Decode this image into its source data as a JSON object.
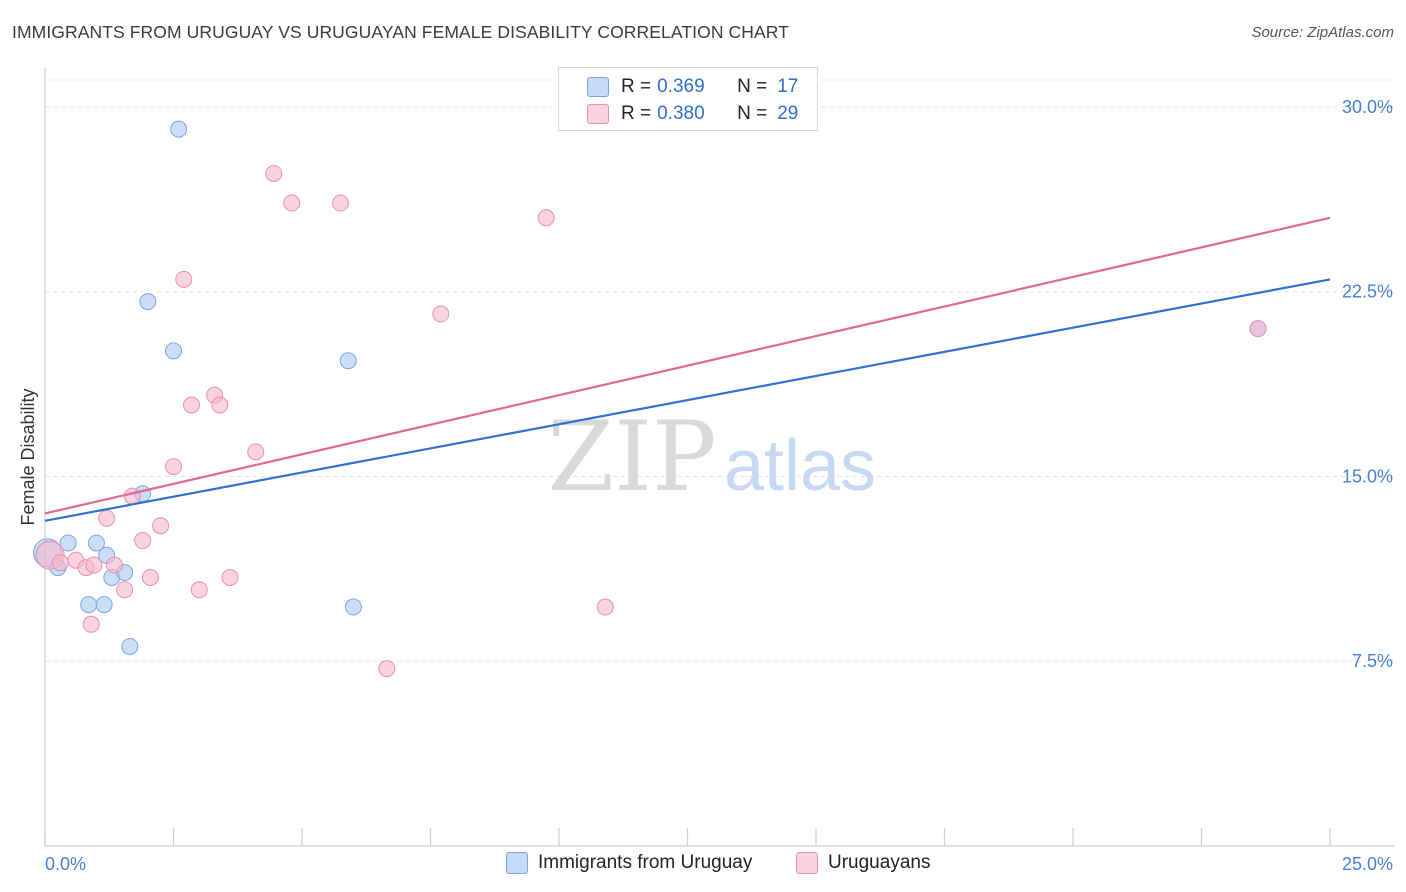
{
  "header": {
    "title": "IMMIGRANTS FROM URUGUAY VS URUGUAYAN FEMALE DISABILITY CORRELATION CHART",
    "source": "Source: ZipAtlas.com"
  },
  "watermark": {
    "zip": "ZIP",
    "atlas": "atlas"
  },
  "legend": {
    "rows": [
      {
        "r_label": "R =",
        "r_value": "0.369",
        "n_label": "N =",
        "n_value": "17",
        "color": "#a9c8f0"
      },
      {
        "r_label": "R =",
        "r_value": "0.380",
        "n_label": "N =",
        "n_value": "29",
        "color": "#f6b6cb"
      }
    ]
  },
  "bottom_legend": {
    "series1": "Immigrants from Uruguay",
    "series2": "Uruguayans"
  },
  "colors": {
    "blue_fill": "#a9c8f0",
    "blue_stroke": "#7aa6e0",
    "blue_line": "#2f72d2",
    "pink_fill": "#f6b6cb",
    "pink_stroke": "#e98fae",
    "pink_line": "#e06892",
    "tick_text": "#4a7fd0",
    "grid": "#e3e3e3"
  },
  "chart_data": {
    "type": "scatter",
    "ylabel": "Female Disability",
    "xlim": [
      0,
      25
    ],
    "ylim": [
      0,
      31.5
    ],
    "x_tick_labels": [
      {
        "value": 0,
        "label": "0.0%"
      },
      {
        "value": 25,
        "label": "25.0%"
      }
    ],
    "y_tick_labels": [
      {
        "value": 7.5,
        "label": "7.5%"
      },
      {
        "value": 15,
        "label": "15.0%"
      },
      {
        "value": 22.5,
        "label": "22.5%"
      },
      {
        "value": 30,
        "label": "30.0%"
      }
    ],
    "grid": true,
    "legend_position": "top-center",
    "series": [
      {
        "name": "Immigrants from Uruguay",
        "color": "#a9c8f0",
        "points": [
          [
            0.05,
            11.9
          ],
          [
            0.25,
            11.3
          ],
          [
            0.45,
            12.3
          ],
          [
            1.0,
            12.3
          ],
          [
            1.2,
            11.8
          ],
          [
            0.85,
            9.8
          ],
          [
            1.15,
            9.8
          ],
          [
            1.3,
            10.9
          ],
          [
            1.55,
            11.1
          ],
          [
            1.65,
            8.1
          ],
          [
            1.9,
            14.3
          ],
          [
            2.0,
            22.1
          ],
          [
            2.5,
            20.1
          ],
          [
            2.6,
            29.1
          ],
          [
            5.9,
            19.7
          ],
          [
            6.0,
            9.7
          ],
          [
            23.6,
            21.0
          ]
        ],
        "trend": {
          "x": [
            0,
            25
          ],
          "y": [
            13.2,
            23.0
          ]
        }
      },
      {
        "name": "Uruguayans",
        "color": "#f6b6cb",
        "points": [
          [
            0.1,
            11.8
          ],
          [
            0.3,
            11.5
          ],
          [
            0.6,
            11.6
          ],
          [
            0.8,
            11.3
          ],
          [
            0.95,
            11.4
          ],
          [
            0.9,
            9.0
          ],
          [
            1.2,
            13.3
          ],
          [
            1.35,
            11.4
          ],
          [
            1.55,
            10.4
          ],
          [
            1.7,
            14.2
          ],
          [
            1.9,
            12.4
          ],
          [
            2.05,
            10.9
          ],
          [
            2.25,
            13.0
          ],
          [
            2.5,
            15.4
          ],
          [
            2.7,
            23.0
          ],
          [
            2.85,
            17.9
          ],
          [
            3.0,
            10.4
          ],
          [
            3.3,
            18.3
          ],
          [
            3.4,
            17.9
          ],
          [
            3.6,
            10.9
          ],
          [
            4.1,
            16.0
          ],
          [
            4.45,
            27.3
          ],
          [
            4.8,
            26.1
          ],
          [
            5.75,
            26.1
          ],
          [
            6.65,
            7.2
          ],
          [
            7.7,
            21.6
          ],
          [
            9.75,
            25.5
          ],
          [
            10.9,
            9.7
          ],
          [
            23.6,
            21.0
          ]
        ],
        "trend": {
          "x": [
            0,
            25
          ],
          "y": [
            13.5,
            25.5
          ]
        }
      }
    ]
  }
}
